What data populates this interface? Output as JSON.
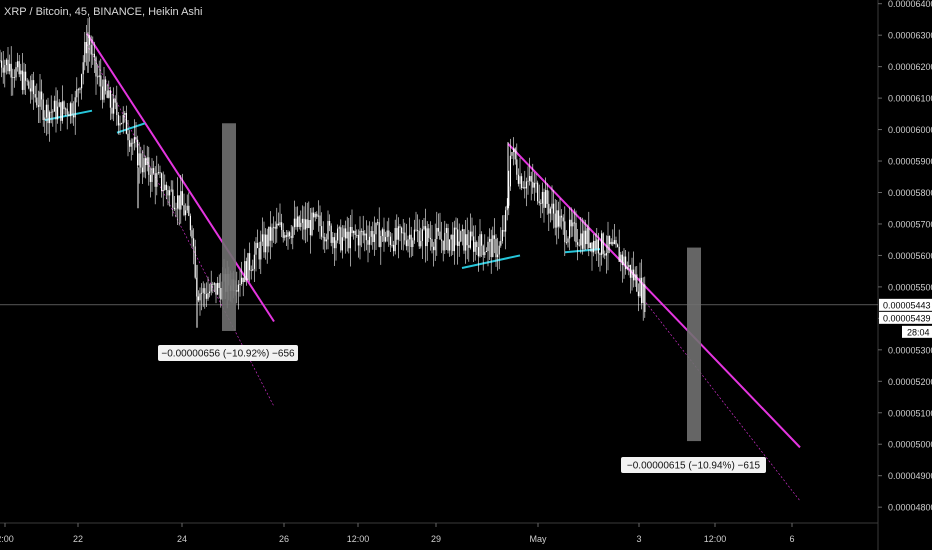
{
  "title": "XRP / Bitcoin, 45, BINANCE, Heikin Ashi",
  "chart_data": {
    "type": "candlestick",
    "symbol": "XRP / Bitcoin",
    "interval": "45",
    "exchange": "BINANCE",
    "chart_style": "Heikin Ashi",
    "ylim": [
      4.77e-05,
      6.4e-05
    ],
    "y_ticks": [
      "0.00006400",
      "0.00006300",
      "0.00006200",
      "0.00006100",
      "0.00006000",
      "0.00005900",
      "0.00005800",
      "0.00005700",
      "0.00005600",
      "0.00005500",
      "0.00005400",
      "0.00005300",
      "0.00005200",
      "0.00005100",
      "0.00005000",
      "0.00004900",
      "0.00004800"
    ],
    "x_ticks": [
      "2:00",
      "22",
      "24",
      "26",
      "12:00",
      "29",
      "May",
      "3",
      "12:00",
      "6"
    ],
    "last_price": "0.00005443",
    "price_label_2": "0.00005439",
    "countdown": "28:04",
    "price_path": [
      6.22e-05,
      6.2e-05,
      6.13e-05,
      6.06e-05,
      6.06e-05,
      6.08e-05,
      6.3e-05,
      6.18e-05,
      6.08e-05,
      6.02e-05,
      5.9e-05,
      5.83e-05,
      5.77e-05,
      5.69e-05,
      5.49e-05,
      5.48e-05,
      5.5e-05,
      5.53e-05,
      5.6e-05,
      5.68e-05,
      5.69e-05,
      5.7e-05,
      5.65e-05,
      5.67e-05,
      5.65e-05,
      5.67e-05,
      5.65e-05,
      5.65e-05,
      5.62e-05,
      5.75e-05,
      5.95e-05,
      5.85e-05,
      5.8e-05,
      5.68e-05,
      5.65e-05,
      5.62e-05,
      5.6e-05,
      5.5e-05,
      5.45e-05
    ],
    "measurements": [
      {
        "text": "−0.00000656 (−10.92%) −656",
        "value": -6.56e-06,
        "percent": -10.92,
        "ticks": -656
      },
      {
        "text": "−0.00000615 (−10.94%) −615",
        "value": -6.15e-06,
        "percent": -10.94,
        "ticks": -615
      }
    ],
    "colors": {
      "candles": "#ffffff",
      "trendline": "#e535e0",
      "support": "#26c6da",
      "measure": "#707070",
      "background": "#000000"
    },
    "grid": false
  }
}
